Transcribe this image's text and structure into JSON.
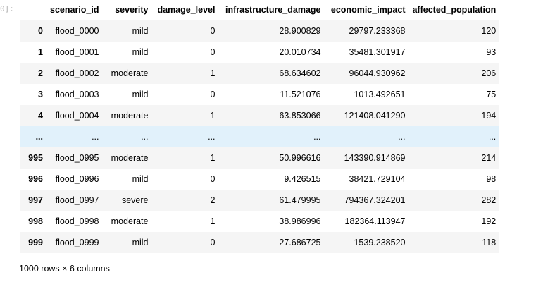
{
  "prompt_fragment": "0]:",
  "table": {
    "columns": [
      "",
      "scenario_id",
      "severity",
      "damage_level",
      "infrastructure_damage",
      "economic_impact",
      "affected_population"
    ],
    "rows": [
      {
        "index": "0",
        "cells": [
          "flood_0000",
          "mild",
          "0",
          "28.900829",
          "29797.233368",
          "120"
        ]
      },
      {
        "index": "1",
        "cells": [
          "flood_0001",
          "mild",
          "0",
          "20.010734",
          "35481.301917",
          "93"
        ]
      },
      {
        "index": "2",
        "cells": [
          "flood_0002",
          "moderate",
          "1",
          "68.634602",
          "96044.930962",
          "206"
        ]
      },
      {
        "index": "3",
        "cells": [
          "flood_0003",
          "mild",
          "0",
          "11.521076",
          "1013.492651",
          "75"
        ]
      },
      {
        "index": "4",
        "cells": [
          "flood_0004",
          "moderate",
          "1",
          "63.853066",
          "121408.041290",
          "194"
        ]
      },
      {
        "index": "...",
        "cells": [
          "...",
          "...",
          "...",
          "...",
          "...",
          "..."
        ],
        "ellipsis": true
      },
      {
        "index": "995",
        "cells": [
          "flood_0995",
          "moderate",
          "1",
          "50.996616",
          "143390.914869",
          "214"
        ]
      },
      {
        "index": "996",
        "cells": [
          "flood_0996",
          "mild",
          "0",
          "9.426515",
          "38421.729104",
          "98"
        ]
      },
      {
        "index": "997",
        "cells": [
          "flood_0997",
          "severe",
          "2",
          "61.479995",
          "794367.324201",
          "282"
        ]
      },
      {
        "index": "998",
        "cells": [
          "flood_0998",
          "moderate",
          "1",
          "38.986996",
          "182364.113947",
          "192"
        ]
      },
      {
        "index": "999",
        "cells": [
          "flood_0999",
          "mild",
          "0",
          "27.686725",
          "1539.238520",
          "118"
        ]
      }
    ]
  },
  "summary": "1000 rows × 6 columns"
}
